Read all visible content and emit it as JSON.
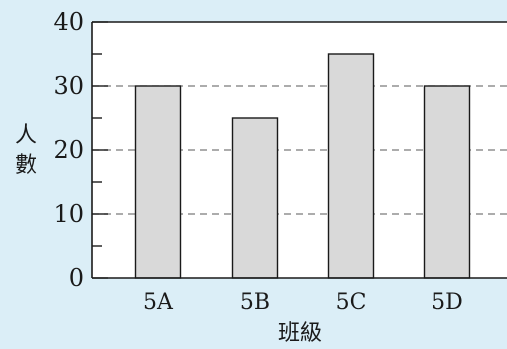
{
  "colors": {
    "background": "#dbeef7",
    "plot_area": "#ffffff",
    "bar_fill": "#d9d9d9",
    "bar_stroke": "#1a1a1a",
    "grid": "#7a7a7a",
    "axis": "#1a1a1a"
  },
  "chart_data": {
    "type": "bar",
    "categories": [
      "5A",
      "5B",
      "5C",
      "5D"
    ],
    "values": [
      30,
      25,
      35,
      30
    ],
    "title": "",
    "xlabel": "班級",
    "ylabel": "人數",
    "ylim": [
      0,
      40
    ],
    "yticks": [
      0,
      10,
      20,
      30,
      40
    ],
    "ytick_labels": [
      "0",
      "10",
      "20",
      "30",
      "40"
    ],
    "grid": "dashed horizontal at major ticks",
    "legend": "none"
  }
}
